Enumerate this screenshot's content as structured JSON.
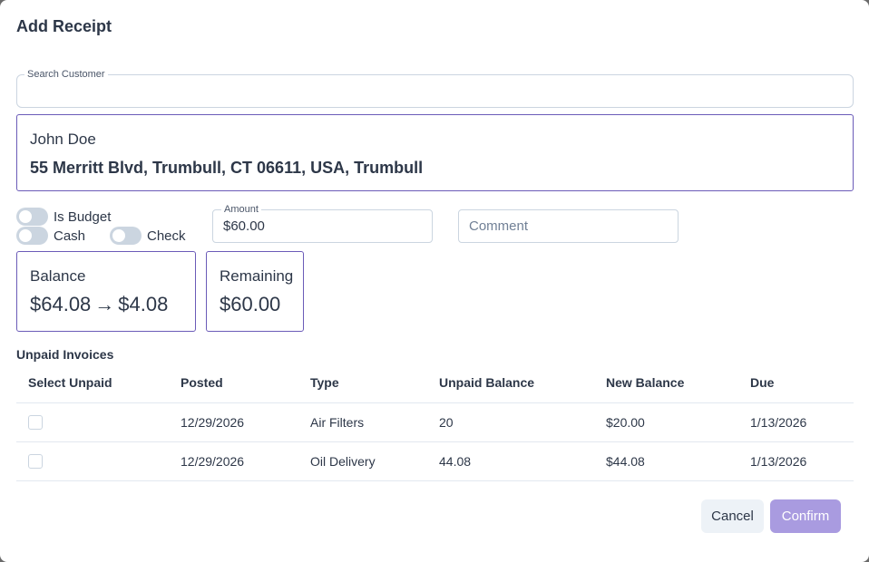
{
  "dialog": {
    "title": "Add Receipt"
  },
  "search": {
    "label": "Search Customer",
    "value": ""
  },
  "customer": {
    "name": "John Doe",
    "address": "55 Merritt Blvd, Trumbull, CT 06611, USA, Trumbull"
  },
  "toggles": {
    "is_budget": "Is Budget",
    "cash": "Cash",
    "check": "Check"
  },
  "amount": {
    "label": "Amount",
    "value": "$60.00"
  },
  "comment": {
    "placeholder": "Comment"
  },
  "balance": {
    "label": "Balance",
    "from": "$64.08",
    "to": "$4.08"
  },
  "remaining": {
    "label": "Remaining",
    "value": "$60.00"
  },
  "invoices": {
    "title": "Unpaid Invoices",
    "headers": [
      "Select Unpaid",
      "Posted",
      "Type",
      "Unpaid Balance",
      "New Balance",
      "Due"
    ],
    "rows": [
      {
        "posted": "12/29/2026",
        "type": "Air Filters",
        "unpaid": "20",
        "new_balance": "$20.00",
        "due": "1/13/2026"
      },
      {
        "posted": "12/29/2026",
        "type": "Oil Delivery",
        "unpaid": "44.08",
        "new_balance": "$44.08",
        "due": "1/13/2026"
      }
    ]
  },
  "actions": {
    "cancel": "Cancel",
    "confirm": "Confirm"
  }
}
